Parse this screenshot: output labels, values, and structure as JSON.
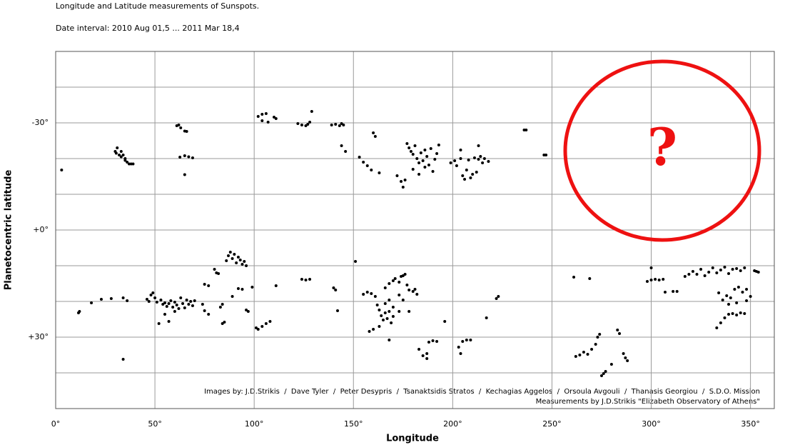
{
  "chart_data": {
    "type": "scatter",
    "title": "Longitude and Latitude measurements of  Sunspots.",
    "subtitle": "Date interval: 2010 Aug 01,5 ... 2011 Mar 18,4",
    "x_label": "Longitude",
    "y_label": "Planetocentric latitude",
    "credits": [
      "Images by: J.D.Strikis  /  Dave Tyler  /  Peter Desypris  /  Tsanaktsidis Stratos  /  Kechagias Aggelos  /  Orsoula Avgouli  /  Thanasis Georgiou  /  S.D.O. Mission",
      "Measurements by J.D.Strikis \"Elizabeth Observatory of Athens\""
    ],
    "annotation": "?",
    "color": "#000000",
    "annotation_color": "#ee1111",
    "grid": true,
    "y_inverted": true,
    "xlim": [
      0,
      362
    ],
    "ylim": [
      -50,
      50
    ],
    "xticks": [
      {
        "value": 0,
        "label": "0°"
      },
      {
        "value": 50,
        "label": "50°"
      },
      {
        "value": 100,
        "label": "100°"
      },
      {
        "value": 150,
        "label": "150°"
      },
      {
        "value": 200,
        "label": "200°"
      },
      {
        "value": 250,
        "label": "250°"
      },
      {
        "value": 300,
        "label": "300°"
      },
      {
        "value": 350,
        "label": "350°"
      }
    ],
    "yticks": [
      {
        "value": -30,
        "label": "-30°"
      },
      {
        "value": 0,
        "label": "+0°"
      },
      {
        "value": 30,
        "label": "+30°"
      }
    ],
    "yminor": [
      -40,
      -20,
      -10,
      10,
      20,
      40
    ],
    "x": [
      3,
      30,
      31,
      32,
      33,
      34,
      35,
      36,
      37,
      38,
      39,
      30.5,
      33,
      35,
      61,
      62,
      63,
      65,
      66,
      62.6,
      65,
      67,
      69,
      65,
      102,
      104,
      106,
      104,
      107,
      110,
      111,
      122,
      124,
      126,
      127,
      128,
      129,
      139,
      141,
      143,
      145,
      144,
      144,
      146,
      160,
      161,
      153,
      155,
      157,
      159,
      163,
      172,
      174,
      175,
      176,
      177,
      178,
      179,
      180,
      181,
      182,
      183,
      184,
      185,
      186,
      187,
      188,
      189,
      190,
      191,
      192,
      193,
      180,
      183,
      186,
      199,
      201,
      202,
      204,
      205,
      206,
      207,
      208,
      209,
      210,
      211,
      212,
      213,
      214,
      215,
      216,
      218,
      204,
      213,
      236,
      237,
      246,
      247,
      11.5,
      12,
      18,
      23,
      28,
      34,
      36,
      34,
      46,
      47,
      48,
      49,
      50,
      51,
      53,
      54,
      55,
      56,
      57,
      58,
      59,
      60,
      61,
      62,
      63,
      64,
      65,
      66,
      67,
      68,
      69,
      70,
      55,
      60,
      52,
      57,
      74,
      75,
      77,
      75,
      77,
      80,
      81,
      82,
      86,
      87,
      88,
      89,
      90,
      91,
      92,
      93,
      94,
      95,
      96,
      84,
      85,
      83,
      84,
      89,
      92,
      94,
      96,
      97,
      99,
      101,
      102,
      104,
      106,
      108,
      111,
      124,
      126,
      128,
      140,
      141,
      142,
      151,
      155,
      157,
      159,
      161,
      162,
      163,
      164,
      165,
      166,
      167,
      168,
      169,
      170,
      160,
      158,
      163,
      166,
      168,
      170,
      168,
      166,
      168,
      170,
      171,
      173,
      174,
      175,
      176,
      177,
      178,
      180,
      181,
      173,
      175,
      173,
      178,
      182,
      183,
      185,
      187,
      188,
      190,
      192,
      187,
      196,
      203,
      204,
      205,
      207,
      209,
      217,
      222,
      223,
      261,
      269,
      262,
      264,
      266,
      268,
      270,
      272,
      273,
      274,
      275,
      276,
      277,
      280,
      283,
      284,
      286,
      287,
      288,
      298,
      300,
      302,
      304,
      306,
      300,
      307,
      311,
      313,
      317,
      319,
      321,
      323,
      325,
      327,
      329,
      331,
      333,
      335,
      337,
      339,
      341,
      343,
      345,
      347,
      333,
      335,
      337,
      339,
      341,
      343,
      345,
      347,
      334,
      336,
      338,
      340,
      342,
      344,
      346,
      348,
      350,
      343,
      339,
      348,
      352,
      353,
      354
    ],
    "values": [
      -16.8,
      -22,
      -23,
      -21,
      -20.5,
      -21,
      -19.5,
      -19,
      -18.5,
      -18.5,
      -18.5,
      -21.5,
      -22,
      -20,
      -29.2,
      -29.4,
      -28.6,
      -27.7,
      -27.6,
      -20.4,
      -20.8,
      -20.5,
      -20.2,
      -15.5,
      -31.8,
      -32.4,
      -32.6,
      -30.6,
      -30.2,
      -31.6,
      -31.2,
      -29.8,
      -29.4,
      -29.2,
      -29.6,
      -30.2,
      -33.2,
      -29.4,
      -29.6,
      -29.2,
      -29.4,
      -29.8,
      -23.6,
      -22,
      -27.2,
      -26.2,
      -20.4,
      -19,
      -18,
      -16.8,
      -16,
      -15.2,
      -13.6,
      -12,
      -14,
      -24.2,
      -23,
      -22,
      -21.2,
      -23.6,
      -20,
      -18.8,
      -21.6,
      -19.4,
      -17.6,
      -20.6,
      -18.2,
      -22.8,
      -16.4,
      -19.8,
      -21.4,
      -23.8,
      -17,
      -15.6,
      -22.4,
      -18.8,
      -19.4,
      -18,
      -20,
      -15.2,
      -14.2,
      -16.8,
      -19.6,
      -14.6,
      -15.6,
      -20.2,
      -16.2,
      -19.8,
      -20.6,
      -18.8,
      -20,
      -19.2,
      -22.4,
      -23.6,
      -28,
      -28,
      -21,
      -21,
      23.2,
      22.8,
      20.4,
      19.4,
      19.2,
      19,
      19.8,
      36.2,
      19.4,
      20,
      18.2,
      17.6,
      19,
      20.2,
      19.6,
      20.8,
      20.4,
      21.4,
      20.6,
      19.8,
      21.6,
      20.2,
      21,
      22,
      19,
      20.6,
      21.8,
      19.6,
      20.8,
      20,
      21.2,
      19.8,
      23.6,
      22.8,
      26.2,
      25.6,
      20.8,
      22.6,
      23.6,
      15.2,
      15.6,
      11,
      12,
      12.2,
      8.6,
      7.2,
      6.2,
      8,
      6.8,
      9.2,
      7.6,
      8.4,
      9.6,
      8.8,
      10,
      26.2,
      25.8,
      21.6,
      20.8,
      18.6,
      16.4,
      16.6,
      22.4,
      22.8,
      16,
      27.4,
      27.8,
      27,
      26.2,
      25.6,
      15.6,
      13.8,
      14,
      13.8,
      16.2,
      16.8,
      22.6,
      8.8,
      18,
      17.4,
      17.8,
      18.6,
      21,
      22.4,
      24,
      25.2,
      23.2,
      24.8,
      22.8,
      26,
      24.2,
      27.8,
      28.4,
      27,
      20.6,
      19.6,
      21.6,
      30.8,
      16.2,
      15,
      14.2,
      13.6,
      14.6,
      13,
      12.8,
      12.4,
      15.4,
      16.8,
      17.2,
      16.6,
      18.2,
      19.6,
      22.8,
      22.8,
      18,
      33.4,
      35.2,
      34.6,
      31.4,
      31,
      31.2,
      36,
      25.6,
      32.8,
      34.6,
      31.2,
      30.8,
      30.8,
      24.6,
      19.2,
      18.6,
      13.2,
      13.6,
      35.4,
      35,
      34.2,
      34.8,
      33.4,
      32,
      30,
      29.2,
      40.8,
      40.2,
      39.6,
      37.6,
      28,
      29,
      34.6,
      35.8,
      36.6,
      14.4,
      14,
      13.8,
      14,
      13.8,
      10.6,
      17.4,
      17.2,
      17.2,
      13,
      12.4,
      11.6,
      12.4,
      11,
      12.8,
      11.8,
      10.6,
      12,
      11.2,
      10.4,
      12.2,
      11,
      10.8,
      11.4,
      10.6,
      27.4,
      26,
      24.6,
      23.6,
      23.4,
      23.8,
      23.2,
      23.4,
      17.6,
      19.6,
      18.4,
      19,
      16.6,
      16,
      17.4,
      16.6,
      18.6,
      20.4,
      20.8,
      19.8,
      11.4,
      11.6,
      11.8
    ]
  }
}
